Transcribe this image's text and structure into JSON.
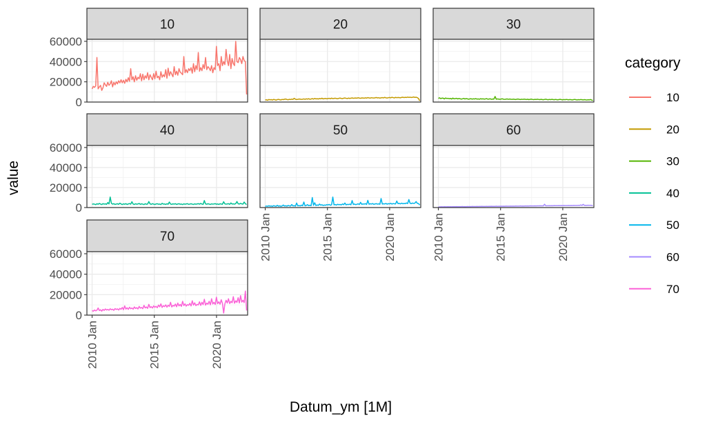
{
  "chart_data": {
    "type": "line",
    "facet_by": "category",
    "xlabel": "Datum_ym [1M]",
    "ylabel": "value",
    "x_ticks": [
      "2010 Jan",
      "2015 Jan",
      "2020 Jan"
    ],
    "y_ticks": [
      0,
      20000,
      40000,
      60000
    ],
    "ylim": [
      0,
      62000
    ],
    "xlim": [
      "2009 Aug",
      "2022 Jul"
    ],
    "x_range": [
      "2010 Jan",
      "2022 Jan"
    ],
    "grid": true,
    "legend": {
      "title": "category",
      "position": "right"
    },
    "series": [
      {
        "name": "10",
        "color": "#F8766D",
        "values": [
          13000,
          15500,
          14500,
          16000,
          44000,
          13000,
          15000,
          16500,
          11500,
          14000,
          19000,
          17000,
          15500,
          19500,
          16500,
          18000,
          21000,
          15000,
          19500,
          17000,
          20000,
          18000,
          21000,
          19000,
          22000,
          19000,
          21500,
          18500,
          22500,
          20000,
          24000,
          20500,
          33000,
          22000,
          25000,
          20000,
          26000,
          21500,
          24500,
          23000,
          28000,
          21000,
          27500,
          22000,
          26000,
          23500,
          29000,
          22000,
          27000,
          24500,
          22000,
          28000,
          23000,
          30500,
          24000,
          25500,
          22000,
          30000,
          24500,
          27000,
          25000,
          32000,
          23500,
          33500,
          26000,
          30000,
          27500,
          25000,
          35000,
          27000,
          30500,
          26500,
          33000,
          29500,
          28500,
          27000,
          45000,
          29000,
          32000,
          29000,
          33000,
          31000,
          34000,
          28500,
          38000,
          30000,
          36000,
          32000,
          49000,
          30500,
          34000,
          31000,
          37000,
          33000,
          44000,
          32000,
          35000,
          33500,
          31000,
          36000,
          29000,
          34000,
          32000,
          55000,
          36000,
          38000,
          31000,
          45000,
          36000,
          40000,
          37000,
          52000,
          41000,
          36000,
          47000,
          33000,
          43000,
          38000,
          36000,
          60000,
          40000,
          39000,
          44000,
          42000,
          38000,
          45000,
          41000,
          40000,
          7500
        ]
      },
      {
        "name": "20",
        "color": "#C49A00",
        "values": [
          2100,
          2200,
          1800,
          2500,
          2200,
          2400,
          2000,
          2600,
          2300,
          1900,
          2400,
          2700,
          2300,
          2100,
          2600,
          2400,
          2800,
          3000,
          2500,
          2300,
          2700,
          2500,
          2900,
          2600,
          3700,
          2800,
          2500,
          2700,
          3000,
          2900,
          2600,
          2800,
          3100,
          2700,
          3200,
          2900,
          3300,
          2800,
          3000,
          3400,
          2900,
          3600,
          3100,
          3300,
          3000,
          3500,
          3200,
          3800,
          3100,
          3400,
          3600,
          3200,
          3500,
          3700,
          3300,
          3900,
          3400,
          3600,
          3800,
          3500,
          3300,
          3700,
          3900,
          3600,
          3400,
          3800,
          4000,
          3700,
          3500,
          3900,
          3600,
          3800,
          4100,
          3700,
          3900,
          4000,
          3800,
          4300,
          3900,
          3700,
          4100,
          4000,
          3800,
          4200,
          3900,
          4400,
          4100,
          3900,
          4300,
          4100,
          4000,
          4200,
          4500,
          4100,
          4300,
          3900,
          4200,
          4400,
          4100,
          4600,
          4200,
          4000,
          4300,
          4500,
          4200,
          4700,
          4400,
          4100,
          4600,
          4300,
          4500,
          4400,
          4200,
          4600,
          4800,
          4400,
          4700,
          4500,
          4900,
          4600,
          4800,
          4500,
          4700,
          5000,
          4600,
          4800,
          4400,
          3500,
          1200
        ]
      },
      {
        "name": "30",
        "color": "#53B400",
        "values": [
          3600,
          4200,
          3400,
          3900,
          3800,
          3100,
          4000,
          3500,
          3700,
          3300,
          3600,
          3000,
          3900,
          3200,
          3400,
          3700,
          3100,
          3500,
          3300,
          2900,
          3200,
          3600,
          3000,
          3400,
          3200,
          2800,
          3100,
          3300,
          2900,
          3200,
          3000,
          3400,
          2900,
          3100,
          2800,
          3300,
          3000,
          3200,
          2900,
          3100,
          3400,
          2800,
          3000,
          3200,
          2700,
          3000,
          2900,
          5500,
          2800,
          3100,
          2900,
          2700,
          3000,
          3200,
          2800,
          2600,
          2900,
          3100,
          2700,
          3000,
          2800,
          2600,
          2900,
          2700,
          2500,
          2800,
          3000,
          2700,
          2500,
          2800,
          2600,
          2900,
          2700,
          2500,
          2800,
          2400,
          2700,
          2900,
          2600,
          2400,
          2700,
          2500,
          2800,
          2600,
          2400,
          2700,
          2500,
          2300,
          2600,
          2800,
          2500,
          2300,
          2600,
          2400,
          2700,
          2500,
          2300,
          2600,
          2400,
          2200,
          2500,
          2700,
          2400,
          2200,
          2500,
          2300,
          2600,
          2400,
          2200,
          2500,
          2300,
          2100,
          2400,
          2600,
          2300,
          2100,
          2400,
          2200,
          2500,
          2300,
          2100,
          2400,
          2200,
          2000,
          2300,
          2100,
          2500,
          2000,
          1500
        ]
      },
      {
        "name": "40",
        "color": "#00C094",
        "values": [
          3200,
          3600,
          3400,
          2900,
          3800,
          3300,
          4100,
          3500,
          3000,
          3900,
          3400,
          3700,
          3200,
          5000,
          3600,
          10500,
          4200,
          3400,
          3900,
          3100,
          3500,
          3800,
          3200,
          4400,
          3600,
          3000,
          3700,
          3300,
          3900,
          3100,
          3600,
          4000,
          3400,
          5800,
          3500,
          3100,
          3800,
          3300,
          3600,
          4100,
          3200,
          3700,
          3400,
          3000,
          3800,
          3300,
          3500,
          6000,
          3700,
          3200,
          3900,
          3400,
          3100,
          3600,
          3800,
          3300,
          3500,
          3000,
          4200,
          3400,
          3600,
          3100,
          3800,
          3300,
          5500,
          3500,
          3200,
          3700,
          3400,
          3900,
          3100,
          3600,
          3800,
          3300,
          3500,
          3000,
          3700,
          3300,
          3600,
          3900,
          3200,
          3500,
          3800,
          3400,
          3100,
          3700,
          3300,
          3600,
          3900,
          3400,
          4100,
          3500,
          3200,
          7000,
          3600,
          3300,
          3800,
          3500,
          3100,
          3700,
          3400,
          3600,
          3900,
          3300,
          3600,
          3100,
          3800,
          3500,
          3300,
          5800,
          3700,
          3400,
          3600,
          3900,
          3200,
          4600,
          3500,
          3700,
          3400,
          3900,
          6000,
          3800,
          3500,
          4200,
          3700,
          3400,
          5500,
          3800,
          3000
        ]
      },
      {
        "name": "50",
        "color": "#00B6EB",
        "values": [
          1200,
          1500,
          1300,
          1800,
          1400,
          1600,
          1200,
          1900,
          1500,
          1300,
          2200,
          1400,
          1700,
          1300,
          1600,
          2500,
          1500,
          1800,
          1400,
          2100,
          1700,
          1500,
          3000,
          1600,
          1900,
          1400,
          4500,
          1700,
          2000,
          1600,
          2400,
          1800,
          5500,
          1700,
          2100,
          2900,
          1900,
          2300,
          1800,
          10000,
          2200,
          4800,
          2000,
          2600,
          2200,
          3500,
          2400,
          2800,
          2100,
          2500,
          2300,
          2900,
          2600,
          3100,
          2300,
          2800,
          10500,
          2700,
          3000,
          2500,
          3300,
          2800,
          3100,
          2600,
          3600,
          2900,
          4500,
          2700,
          3200,
          3000,
          3400,
          2800,
          7000,
          3100,
          3500,
          2900,
          3300,
          3700,
          3000,
          5200,
          3200,
          3600,
          3400,
          3900,
          3100,
          7200,
          3300,
          3800,
          3500,
          4000,
          3200,
          3600,
          3900,
          3400,
          3700,
          3300,
          9000,
          3500,
          3800,
          3600,
          4100,
          3400,
          3900,
          3700,
          4200,
          3500,
          4000,
          3800,
          3600,
          6500,
          3900,
          4200,
          3700,
          4400,
          3800,
          4100,
          3900,
          4600,
          4000,
          8000,
          4300,
          3900,
          4500,
          4100,
          4400,
          6000,
          4200,
          4000,
          2500
        ]
      },
      {
        "name": "60",
        "color": "#A58AFF",
        "values": [
          700,
          650,
          800,
          750,
          700,
          850,
          800,
          750,
          900,
          800,
          850,
          780,
          900,
          820,
          880,
          950,
          850,
          900,
          870,
          950,
          1000,
          900,
          950,
          880,
          1000,
          950,
          1050,
          980,
          1100,
          1000,
          1050,
          1000,
          1100,
          1050,
          1150,
          1080,
          1200,
          1100,
          1150,
          1100,
          1250,
          1150,
          1200,
          1180,
          1300,
          1200,
          1250,
          1200,
          1350,
          1250,
          1300,
          1280,
          1400,
          1300,
          1350,
          1300,
          1450,
          1350,
          1400,
          1380,
          1500,
          1400,
          1450,
          1400,
          1550,
          1450,
          1500,
          1480,
          1600,
          1500,
          1550,
          1500,
          1650,
          1550,
          1600,
          1580,
          1700,
          1600,
          1650,
          1600,
          1750,
          1650,
          1700,
          1680,
          1800,
          1700,
          1750,
          1700,
          3300,
          1750,
          1800,
          1780,
          1900,
          1800,
          1850,
          1800,
          1950,
          1850,
          1900,
          1880,
          2000,
          1900,
          1950,
          1900,
          2050,
          1950,
          2000,
          1980,
          2100,
          2000,
          2050,
          2000,
          2150,
          2050,
          2100,
          2080,
          2200,
          2100,
          2600,
          2100,
          3200,
          2150,
          2200,
          2180,
          2300,
          2200,
          2250,
          2150,
          1800
        ]
      },
      {
        "name": "70",
        "color": "#FB61D7",
        "values": [
          4500,
          3800,
          5000,
          4200,
          4800,
          7000,
          4500,
          5200,
          3900,
          5600,
          4600,
          6000,
          5000,
          5600,
          4800,
          6200,
          5300,
          5800,
          4700,
          6400,
          5500,
          6100,
          5000,
          6600,
          5700,
          7500,
          5300,
          9000,
          5900,
          7200,
          5600,
          7700,
          6200,
          7000,
          5800,
          8000,
          6500,
          7300,
          6000,
          8500,
          6800,
          7500,
          6300,
          9500,
          7000,
          8000,
          6600,
          10500,
          7300,
          8300,
          6900,
          9000,
          7700,
          8600,
          7200,
          9800,
          8100,
          11000,
          7500,
          9200,
          8300,
          10000,
          7800,
          9700,
          8500,
          12500,
          8000,
          9500,
          8800,
          10800,
          8200,
          11800,
          9000,
          10500,
          8500,
          13500,
          9300,
          11000,
          8800,
          10300,
          9600,
          11500,
          9000,
          14000,
          9800,
          12000,
          9300,
          10500,
          10000,
          13000,
          9500,
          12500,
          10300,
          15500,
          9800,
          11800,
          10600,
          13500,
          10100,
          16000,
          10900,
          12500,
          10400,
          17500,
          11200,
          13000,
          10700,
          15000,
          11500,
          2000,
          11000,
          14500,
          11800,
          16000,
          11300,
          13500,
          12100,
          18000,
          11600,
          14000,
          12400,
          17000,
          11900,
          19000,
          12700,
          14500,
          12200,
          23500,
          4500
        ]
      }
    ]
  }
}
